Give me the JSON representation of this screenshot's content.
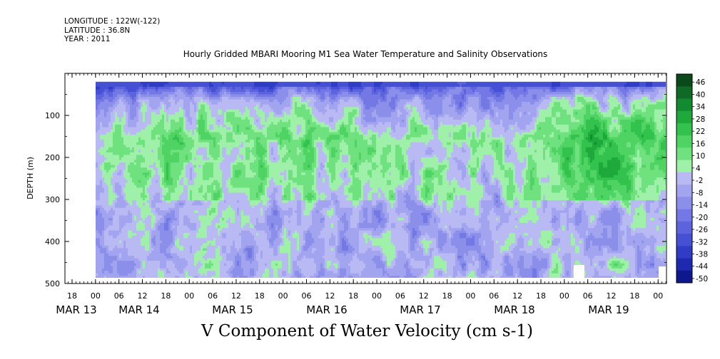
{
  "meta": {
    "longitude": "LONGITUDE : 122W(-122)",
    "latitude": "LATITUDE : 36.8N",
    "year": "YEAR : 2011"
  },
  "title": "Hourly Gridded MBARI Mooring M1 Sea Water Temperature and Salinity Observations",
  "chart_data": {
    "type": "heatmap",
    "title": "Hourly Gridded MBARI Mooring M1 Sea Water Temperature and Salinity Observations",
    "xlabel": "V Component of Water Velocity (cm s-1)",
    "ylabel": "DEPTH (m)",
    "y_range": [
      500,
      0
    ],
    "y_ticks": [
      "100",
      "200",
      "300",
      "400",
      "500"
    ],
    "y_tick_values": [
      100,
      200,
      300,
      400,
      500
    ],
    "x_hour_ticks": [
      "18",
      "00",
      "06",
      "12",
      "18",
      "00",
      "06",
      "12",
      "18",
      "00",
      "06",
      "12",
      "18",
      "00",
      "06",
      "12",
      "18",
      "00",
      "06",
      "12",
      "18",
      "00",
      "06",
      "12",
      "18",
      "00",
      "06",
      "12",
      "18",
      "00"
    ],
    "x_date_labels": [
      "MAR 13",
      "MAR 14",
      "MAR 15",
      "MAR 16",
      "MAR 17",
      "MAR 18",
      "MAR 19"
    ],
    "colorbar": {
      "min": -50,
      "max": 50,
      "tick_labels": [
        "46",
        "40",
        "34",
        "28",
        "22",
        "16",
        "10",
        "4",
        "-2",
        "-8",
        "-14",
        "-20",
        "-26",
        "-32",
        "-38",
        "-44",
        "-50"
      ],
      "colors": [
        "#0a4a1a",
        "#0f6a25",
        "#128a30",
        "#1fa83c",
        "#33c24d",
        "#4fd463",
        "#6fe27f",
        "#9ff0a8",
        "#b9b9f3",
        "#a2a4ef",
        "#8b8fea",
        "#7378e4",
        "#5c63dd",
        "#4550d4",
        "#2f3cc6",
        "#1d2ab0",
        "#0e188e"
      ],
      "ticks": [
        46,
        40,
        34,
        28,
        22,
        16,
        10,
        4,
        -2,
        -8,
        -14,
        -20,
        -26,
        -32,
        -38,
        -44,
        -50
      ]
    },
    "data_depth_range": [
      20,
      490
    ],
    "data_time_range": [
      "MAR 14 00",
      "MAR 20 00"
    ],
    "depth_profile": [
      {
        "depth": 20,
        "v": -34
      },
      {
        "depth": 60,
        "v": -12
      },
      {
        "depth": 150,
        "v": 6
      },
      {
        "depth": 250,
        "v": 0
      },
      {
        "depth": 350,
        "v": -6
      },
      {
        "depth": 450,
        "v": -4
      }
    ],
    "series": [
      {
        "time": "MAR 14 00",
        "v_mean_upper": -4
      },
      {
        "time": "MAR 14 18",
        "v_mean_upper": 12
      },
      {
        "time": "MAR 15 12",
        "v_mean_upper": 8
      },
      {
        "time": "MAR 16 00",
        "v_mean_upper": 10
      },
      {
        "time": "MAR 17 06",
        "v_mean_upper": 6
      },
      {
        "time": "MAR 18 06",
        "v_mean_upper": 4
      },
      {
        "time": "MAR 19 06",
        "v_mean_upper": 22
      },
      {
        "time": "MAR 19 20",
        "v_mean_upper": 18
      }
    ],
    "grid": false
  }
}
